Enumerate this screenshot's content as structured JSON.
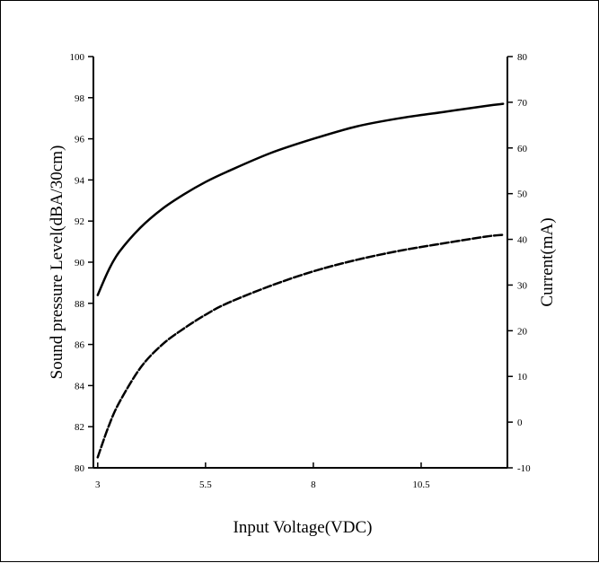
{
  "chart_data": {
    "type": "line",
    "xlabel": "Input Voltage(VDC)",
    "ylabel_left": "Sound pressure Level(dBA/30cm)",
    "ylabel_right": "Current(mA)",
    "x_ticks": [
      "3",
      "5.5",
      "8",
      "10.5"
    ],
    "x_tick_values": [
      3,
      5.5,
      8,
      10.5
    ],
    "xlim": [
      2.9,
      12.5
    ],
    "ylim_left": [
      80,
      100
    ],
    "y_ticks_left": [
      "80",
      "82",
      "84",
      "86",
      "88",
      "90",
      "92",
      "94",
      "96",
      "98",
      "100"
    ],
    "ylim_right": [
      -10,
      80
    ],
    "y_ticks_right": [
      "-10",
      "0",
      "10",
      "20",
      "30",
      "40",
      "50",
      "60",
      "70",
      "80"
    ],
    "grid": false,
    "legend": "none",
    "series": [
      {
        "axis": "left",
        "style": "solid",
        "color": "#000000",
        "x": [
          3.0,
          3.25,
          3.5,
          4.0,
          4.5,
          5.0,
          5.5,
          6.0,
          7.0,
          8.0,
          9.0,
          10.0,
          11.0,
          12.0,
          12.4
        ],
        "y": [
          88.4,
          89.6,
          90.5,
          91.7,
          92.6,
          93.3,
          93.9,
          94.4,
          95.3,
          96.0,
          96.6,
          97.0,
          97.3,
          97.6,
          97.7
        ]
      },
      {
        "axis": "right",
        "style": "dashed",
        "color": "#000000",
        "x": [
          3.0,
          3.25,
          3.5,
          4.0,
          4.5,
          5.0,
          5.5,
          6.0,
          7.0,
          8.0,
          9.0,
          10.0,
          11.0,
          12.0,
          12.4
        ],
        "y": [
          -7.7,
          -1.0,
          4.3,
          12.0,
          17.0,
          20.5,
          23.5,
          26.0,
          29.8,
          33.0,
          35.5,
          37.5,
          39.1,
          40.6,
          41.0
        ]
      }
    ]
  }
}
